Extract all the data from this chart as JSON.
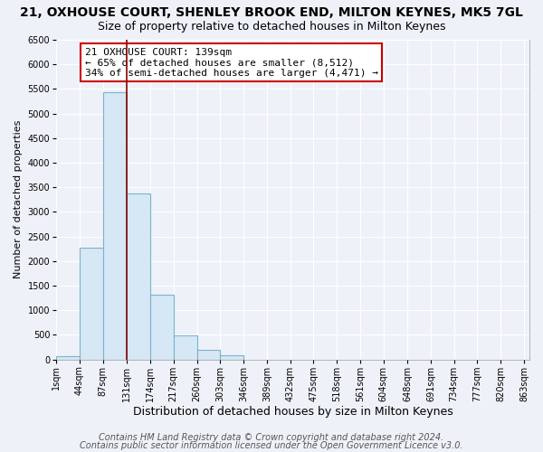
{
  "title": "21, OXHOUSE COURT, SHENLEY BROOK END, MILTON KEYNES, MK5 7GL",
  "subtitle": "Size of property relative to detached houses in Milton Keynes",
  "xlabel": "Distribution of detached houses by size in Milton Keynes",
  "ylabel": "Number of detached properties",
  "bin_edges": [
    1,
    44,
    87,
    131,
    174,
    217,
    260,
    303,
    346,
    389,
    432,
    475,
    518,
    561,
    604,
    648,
    691,
    734,
    777,
    820,
    863
  ],
  "bin_labels": [
    "1sqm",
    "44sqm",
    "87sqm",
    "131sqm",
    "174sqm",
    "217sqm",
    "260sqm",
    "303sqm",
    "346sqm",
    "389sqm",
    "432sqm",
    "475sqm",
    "518sqm",
    "561sqm",
    "604sqm",
    "648sqm",
    "691sqm",
    "734sqm",
    "777sqm",
    "820sqm",
    "863sqm"
  ],
  "bar_heights": [
    70,
    2270,
    5430,
    3380,
    1310,
    480,
    185,
    75,
    0,
    0,
    0,
    0,
    0,
    0,
    0,
    0,
    0,
    0,
    0,
    0
  ],
  "bar_color": "#d6e8f5",
  "bar_edge_color": "#7ab3d0",
  "property_size": 139,
  "vline_x": 131,
  "vline_color": "#8b0000",
  "ylim": [
    0,
    6500
  ],
  "yticks": [
    0,
    500,
    1000,
    1500,
    2000,
    2500,
    3000,
    3500,
    4000,
    4500,
    5000,
    5500,
    6000,
    6500
  ],
  "annotation_title": "21 OXHOUSE COURT: 139sqm",
  "annotation_line1": "← 65% of detached houses are smaller (8,512)",
  "annotation_line2": "34% of semi-detached houses are larger (4,471) →",
  "annotation_box_facecolor": "#ffffff",
  "annotation_box_edge_color": "#cc0000",
  "footer1": "Contains HM Land Registry data © Crown copyright and database right 2024.",
  "footer2": "Contains public sector information licensed under the Open Government Licence v3.0.",
  "bg_color": "#eef2f8",
  "grid_color": "#ffffff",
  "title_fontsize": 10,
  "subtitle_fontsize": 9,
  "xlabel_fontsize": 9,
  "ylabel_fontsize": 8,
  "footer_fontsize": 7,
  "tick_fontsize": 7,
  "ann_fontsize": 8
}
